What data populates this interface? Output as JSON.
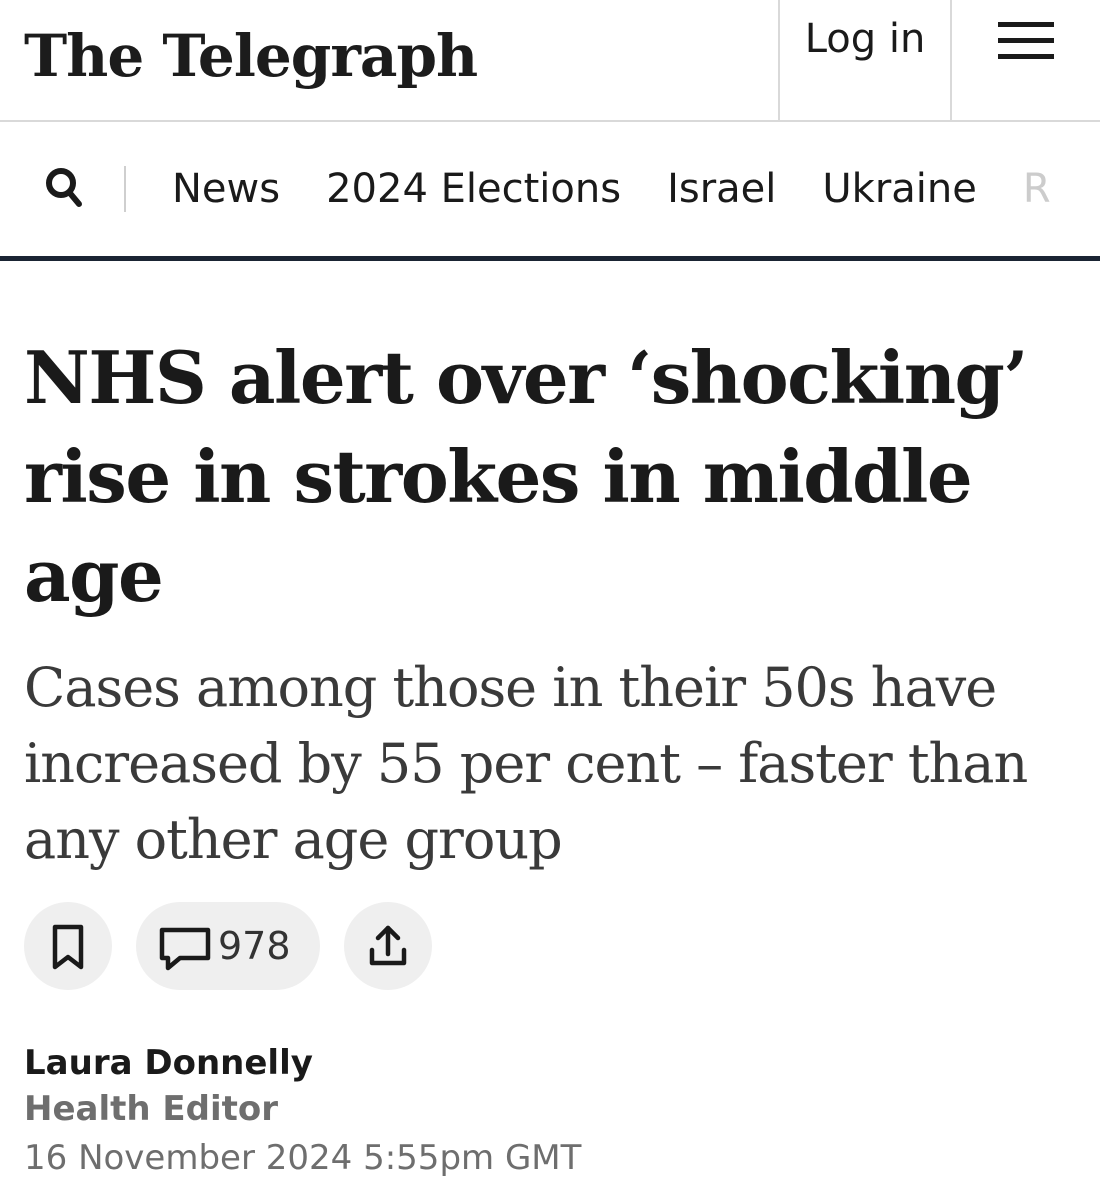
{
  "header": {
    "logo_text": "The Telegraph",
    "login_label": "Log in",
    "menu_icon": "hamburger-menu-icon"
  },
  "nav": {
    "search_icon": "search-icon",
    "items": [
      "News",
      "2024 Elections",
      "Israel",
      "Ukraine",
      "R"
    ]
  },
  "article": {
    "headline": "NHS alert over ‘shocking’ rise in strokes in middle age",
    "standfirst": "Cases among those in their 50s have increased by 55 per cent – faster than any other age group",
    "actions": {
      "bookmark_icon": "bookmark-icon",
      "comment_icon": "comment-icon",
      "comment_count": "978",
      "share_icon": "share-icon"
    },
    "byline": {
      "author": "Laura Donnelly",
      "role": "Health Editor",
      "date": "16 November 2024 5:55pm GMT"
    }
  },
  "colors": {
    "text": "#1a1a1a",
    "muted": "#6e6e6e",
    "divider_dark": "#1a2433",
    "pill_bg": "#efefef"
  }
}
